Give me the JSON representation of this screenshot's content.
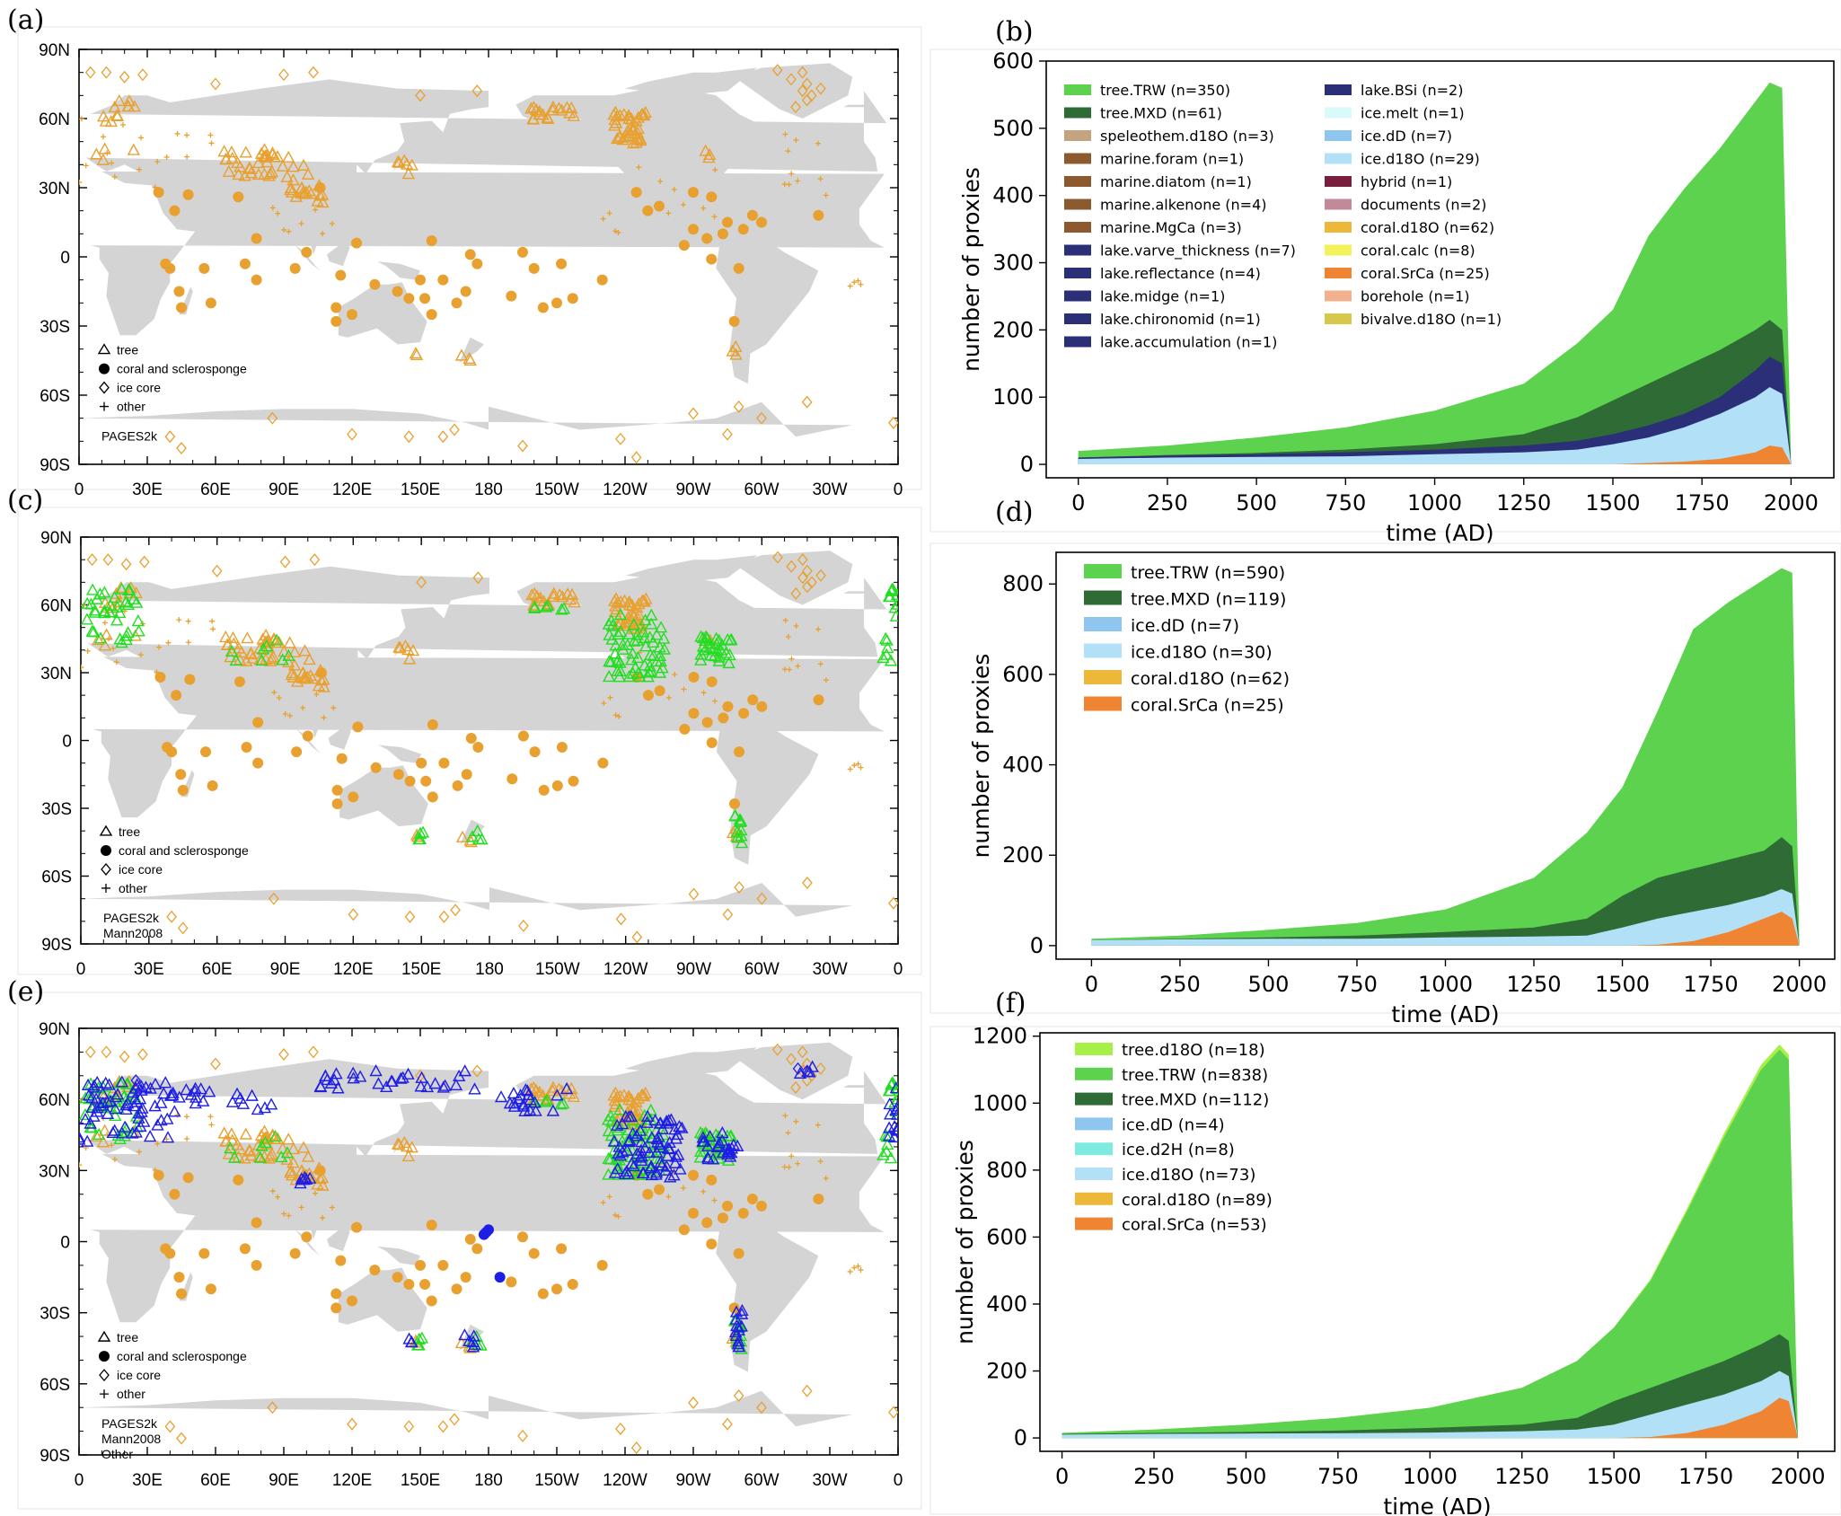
{
  "figure": {
    "colors": {
      "rages2k": "#E8A030",
      "mann2008": "#22DD22",
      "other": "#1E1EE6",
      "land": "#D4D4D4"
    }
  },
  "map_axes": {
    "lat_labels": [
      "90N",
      "60N",
      "30N",
      "0",
      "30S",
      "60S",
      "90S"
    ],
    "lon_labels": [
      "0",
      "30E",
      "60E",
      "90E",
      "120E",
      "150E",
      "180",
      "150W",
      "120W",
      "90W",
      "60W",
      "30W",
      "0"
    ]
  },
  "map_legend": {
    "symbols": [
      "tree",
      "coral and sclerosponge",
      "ice core",
      "other"
    ],
    "databases": [
      "PAGES2k",
      "Mann2008",
      "Other"
    ]
  },
  "maps": [
    {
      "panel": "(a)",
      "databases": [
        "PAGES2k"
      ]
    },
    {
      "panel": "(c)",
      "databases": [
        "PAGES2k",
        "Mann2008"
      ]
    },
    {
      "panel": "(e)",
      "databases": [
        "PAGES2k",
        "Mann2008",
        "Other"
      ]
    }
  ],
  "chart_data": [
    {
      "panel": "(b)",
      "type": "area",
      "xlabel": "time (AD)",
      "ylabel": "number of proxies",
      "xlim": [
        -90,
        2120
      ],
      "ylim": [
        -20,
        600
      ],
      "xticks": [
        0,
        250,
        500,
        750,
        1000,
        1250,
        1500,
        1750,
        2000
      ],
      "yticks": [
        0,
        100,
        200,
        300,
        400,
        500,
        600
      ],
      "x": [
        0,
        250,
        500,
        750,
        1000,
        1250,
        1400,
        1500,
        1600,
        1700,
        1800,
        1900,
        1940,
        1975,
        2000
      ],
      "stack_totals": [
        {
          "name": "coral",
          "values": [
            0,
            0,
            0,
            0,
            0,
            0,
            0,
            0,
            2,
            4,
            8,
            18,
            28,
            25,
            0
          ]
        },
        {
          "name": "ice",
          "values": [
            8,
            10,
            11,
            12,
            15,
            18,
            22,
            30,
            40,
            55,
            75,
            100,
            115,
            105,
            0
          ]
        },
        {
          "name": "lake + other",
          "values": [
            10,
            13,
            15,
            18,
            22,
            28,
            35,
            45,
            58,
            75,
            100,
            140,
            160,
            150,
            0
          ]
        },
        {
          "name": "tree.MXD",
          "values": [
            10,
            14,
            17,
            22,
            30,
            45,
            70,
            95,
            120,
            145,
            170,
            200,
            215,
            200,
            0
          ]
        },
        {
          "name": "tree.TRW",
          "values": [
            20,
            28,
            40,
            55,
            80,
            120,
            180,
            230,
            340,
            410,
            470,
            540,
            568,
            560,
            0
          ]
        }
      ],
      "legend": [
        {
          "label": "tree.TRW (n=350)",
          "color": "#5CD24E"
        },
        {
          "label": "tree.MXD (n=61)",
          "color": "#2E6B35"
        },
        {
          "label": "speleothem.d18O (n=3)",
          "color": "#C4A47E"
        },
        {
          "label": "marine.foram (n=1)",
          "color": "#8C5A2E"
        },
        {
          "label": "marine.diatom (n=1)",
          "color": "#8C5A2E"
        },
        {
          "label": "marine.alkenone (n=4)",
          "color": "#8C5A2E"
        },
        {
          "label": "marine.MgCa (n=3)",
          "color": "#8C5A2E"
        },
        {
          "label": "lake.varve_thickness (n=7)",
          "color": "#2A2F78"
        },
        {
          "label": "lake.reflectance (n=4)",
          "color": "#2A2F78"
        },
        {
          "label": "lake.midge (n=1)",
          "color": "#2A2F78"
        },
        {
          "label": "lake.chironomid (n=1)",
          "color": "#2A2F78"
        },
        {
          "label": "lake.accumulation (n=1)",
          "color": "#2A2F78"
        },
        {
          "label": "lake.BSi (n=2)",
          "color": "#2A2F78"
        },
        {
          "label": "ice.melt (n=1)",
          "color": "#D8FAFA"
        },
        {
          "label": "ice.dD (n=7)",
          "color": "#8EC6F0"
        },
        {
          "label": "ice.d18O (n=29)",
          "color": "#B2E0F6"
        },
        {
          "label": "hybrid (n=1)",
          "color": "#7A1E3E"
        },
        {
          "label": "documents (n=2)",
          "color": "#C28A98"
        },
        {
          "label": "coral.d18O (n=62)",
          "color": "#EDB83A"
        },
        {
          "label": "coral.calc (n=8)",
          "color": "#F2F25A"
        },
        {
          "label": "coral.SrCa (n=25)",
          "color": "#EF8532"
        },
        {
          "label": "borehole (n=1)",
          "color": "#F2B08E"
        },
        {
          "label": "bivalve.d18O (n=1)",
          "color": "#D6C84A"
        }
      ]
    },
    {
      "panel": "(d)",
      "type": "area",
      "xlabel": "time (AD)",
      "ylabel": "number of proxies",
      "xlim": [
        -100,
        2100
      ],
      "ylim": [
        -30,
        870
      ],
      "xticks": [
        0,
        250,
        500,
        750,
        1000,
        1250,
        1500,
        1750,
        2000
      ],
      "yticks": [
        0,
        200,
        400,
        600,
        800
      ],
      "x": [
        0,
        250,
        500,
        750,
        1000,
        1250,
        1400,
        1500,
        1600,
        1700,
        1800,
        1900,
        1950,
        1980,
        2000
      ],
      "stack_totals": [
        {
          "name": "coral",
          "values": [
            0,
            0,
            0,
            0,
            0,
            0,
            0,
            0,
            2,
            10,
            30,
            60,
            75,
            60,
            0
          ]
        },
        {
          "name": "ice",
          "values": [
            12,
            14,
            15,
            15,
            18,
            20,
            22,
            40,
            60,
            75,
            90,
            110,
            125,
            115,
            0
          ]
        },
        {
          "name": "tree.MXD",
          "values": [
            12,
            15,
            18,
            22,
            30,
            40,
            60,
            110,
            150,
            170,
            190,
            210,
            240,
            220,
            0
          ]
        },
        {
          "name": "tree.TRW",
          "values": [
            15,
            22,
            35,
            50,
            80,
            150,
            250,
            350,
            520,
            700,
            760,
            810,
            835,
            825,
            0
          ]
        }
      ],
      "legend": [
        {
          "label": "tree.TRW (n=590)",
          "color": "#5CD24E"
        },
        {
          "label": "tree.MXD (n=119)",
          "color": "#2E6B35"
        },
        {
          "label": "ice.dD (n=7)",
          "color": "#8EC6F0"
        },
        {
          "label": "ice.d18O (n=30)",
          "color": "#B2E0F6"
        },
        {
          "label": "coral.d18O (n=62)",
          "color": "#EDB83A"
        },
        {
          "label": "coral.SrCa (n=25)",
          "color": "#EF8532"
        }
      ]
    },
    {
      "panel": "(f)",
      "type": "area",
      "xlabel": "time (AD)",
      "ylabel": "number of proxies",
      "xlim": [
        -60,
        2100
      ],
      "ylim": [
        -40,
        1210
      ],
      "xticks": [
        0,
        250,
        500,
        750,
        1000,
        1250,
        1500,
        1750,
        2000
      ],
      "yticks": [
        0,
        200,
        400,
        600,
        800,
        1000,
        1200
      ],
      "x": [
        0,
        250,
        500,
        750,
        1000,
        1250,
        1400,
        1500,
        1600,
        1700,
        1800,
        1900,
        1950,
        1975,
        2000
      ],
      "stack_totals": [
        {
          "name": "coral",
          "values": [
            0,
            0,
            0,
            0,
            0,
            0,
            0,
            0,
            3,
            15,
            40,
            80,
            120,
            110,
            0
          ]
        },
        {
          "name": "ice",
          "values": [
            10,
            12,
            13,
            14,
            16,
            20,
            25,
            40,
            70,
            100,
            130,
            170,
            200,
            185,
            0
          ]
        },
        {
          "name": "tree.MXD",
          "values": [
            12,
            15,
            18,
            22,
            30,
            40,
            60,
            110,
            150,
            190,
            230,
            280,
            310,
            290,
            0
          ]
        },
        {
          "name": "tree.TRW",
          "values": [
            15,
            25,
            40,
            60,
            90,
            150,
            230,
            330,
            470,
            680,
            900,
            1100,
            1160,
            1130,
            0
          ]
        },
        {
          "name": "tree.d18O",
          "values": [
            15,
            25,
            40,
            60,
            90,
            150,
            230,
            330,
            475,
            688,
            912,
            1115,
            1175,
            1145,
            0
          ]
        }
      ],
      "legend": [
        {
          "label": "tree.d18O (n=18)",
          "color": "#A8F048"
        },
        {
          "label": "tree.TRW (n=838)",
          "color": "#5CD24E"
        },
        {
          "label": "tree.MXD (n=112)",
          "color": "#2E6B35"
        },
        {
          "label": "ice.dD (n=4)",
          "color": "#8EC6F0"
        },
        {
          "label": "ice.d2H (n=8)",
          "color": "#7FEBE0"
        },
        {
          "label": "ice.d18O (n=73)",
          "color": "#B2E0F6"
        },
        {
          "label": "coral.d18O (n=89)",
          "color": "#EDB83A"
        },
        {
          "label": "coral.SrCa (n=53)",
          "color": "#EF8532"
        }
      ]
    }
  ]
}
